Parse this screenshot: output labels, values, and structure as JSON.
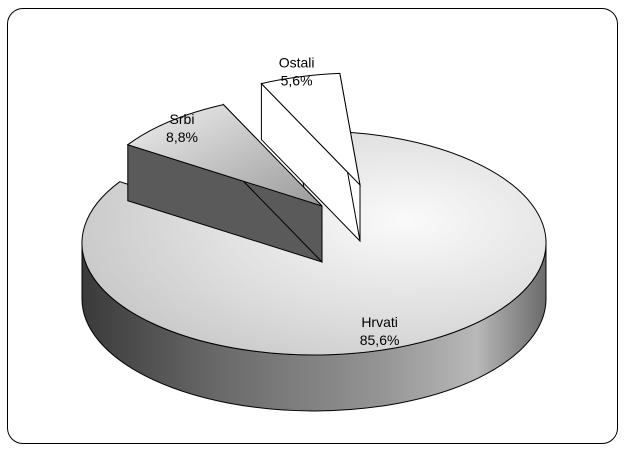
{
  "chart_data": {
    "type": "pie",
    "style": "3d-exploded",
    "slices": [
      {
        "label": "Hrvati",
        "value": 85.6,
        "value_label": "85,6%",
        "color": "#d9d9d9"
      },
      {
        "label": "Srbi",
        "value": 8.8,
        "value_label": "8,8%",
        "color": "#b4b4b4"
      },
      {
        "label": "Ostali",
        "value": 5.6,
        "value_label": "5,6%",
        "color": "#ffffff"
      }
    ],
    "title": "",
    "legend": "none"
  }
}
